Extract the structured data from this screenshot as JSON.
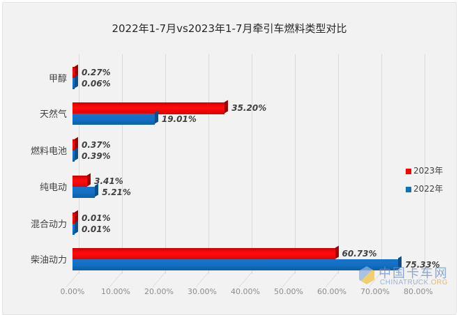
{
  "chart_data": {
    "type": "bar",
    "orientation": "horizontal",
    "title": "2022年1-7月vs2023年1-7月牵引车燃料类型对比",
    "categories": [
      "甲醇",
      "天然气",
      "燃料电池",
      "纯电动",
      "混合动力",
      "柴油动力"
    ],
    "series": [
      {
        "name": "2023年",
        "color": "#ff0000",
        "values": [
          0.27,
          35.2,
          0.37,
          3.41,
          0.01,
          60.73
        ]
      },
      {
        "name": "2022年",
        "color": "#1270c4",
        "values": [
          0.06,
          19.01,
          0.39,
          5.21,
          0.01,
          75.33
        ]
      }
    ],
    "data_labels": {
      "2023年": [
        "0.27%",
        "35.20%",
        "0.37%",
        "3.41%",
        "0.01%",
        "60.73%"
      ],
      "2022年": [
        "0.06%",
        "19.01%",
        "0.39%",
        "5.21%",
        "0.01%",
        "75.33%"
      ]
    },
    "xlabel": "",
    "ylabel": "",
    "xlim": [
      0,
      80
    ],
    "x_ticks": [
      "0.00%",
      "10.00%",
      "20.00%",
      "30.00%",
      "40.00%",
      "50.00%",
      "60.00%",
      "70.00%",
      "80.00%"
    ],
    "grid": true,
    "legend_position": "right",
    "style": "3d-clustered-bar"
  },
  "watermark": {
    "cn": "中国卡车网",
    "en_main": "CHINATRUCK",
    "en_suffix": ".ORG"
  }
}
